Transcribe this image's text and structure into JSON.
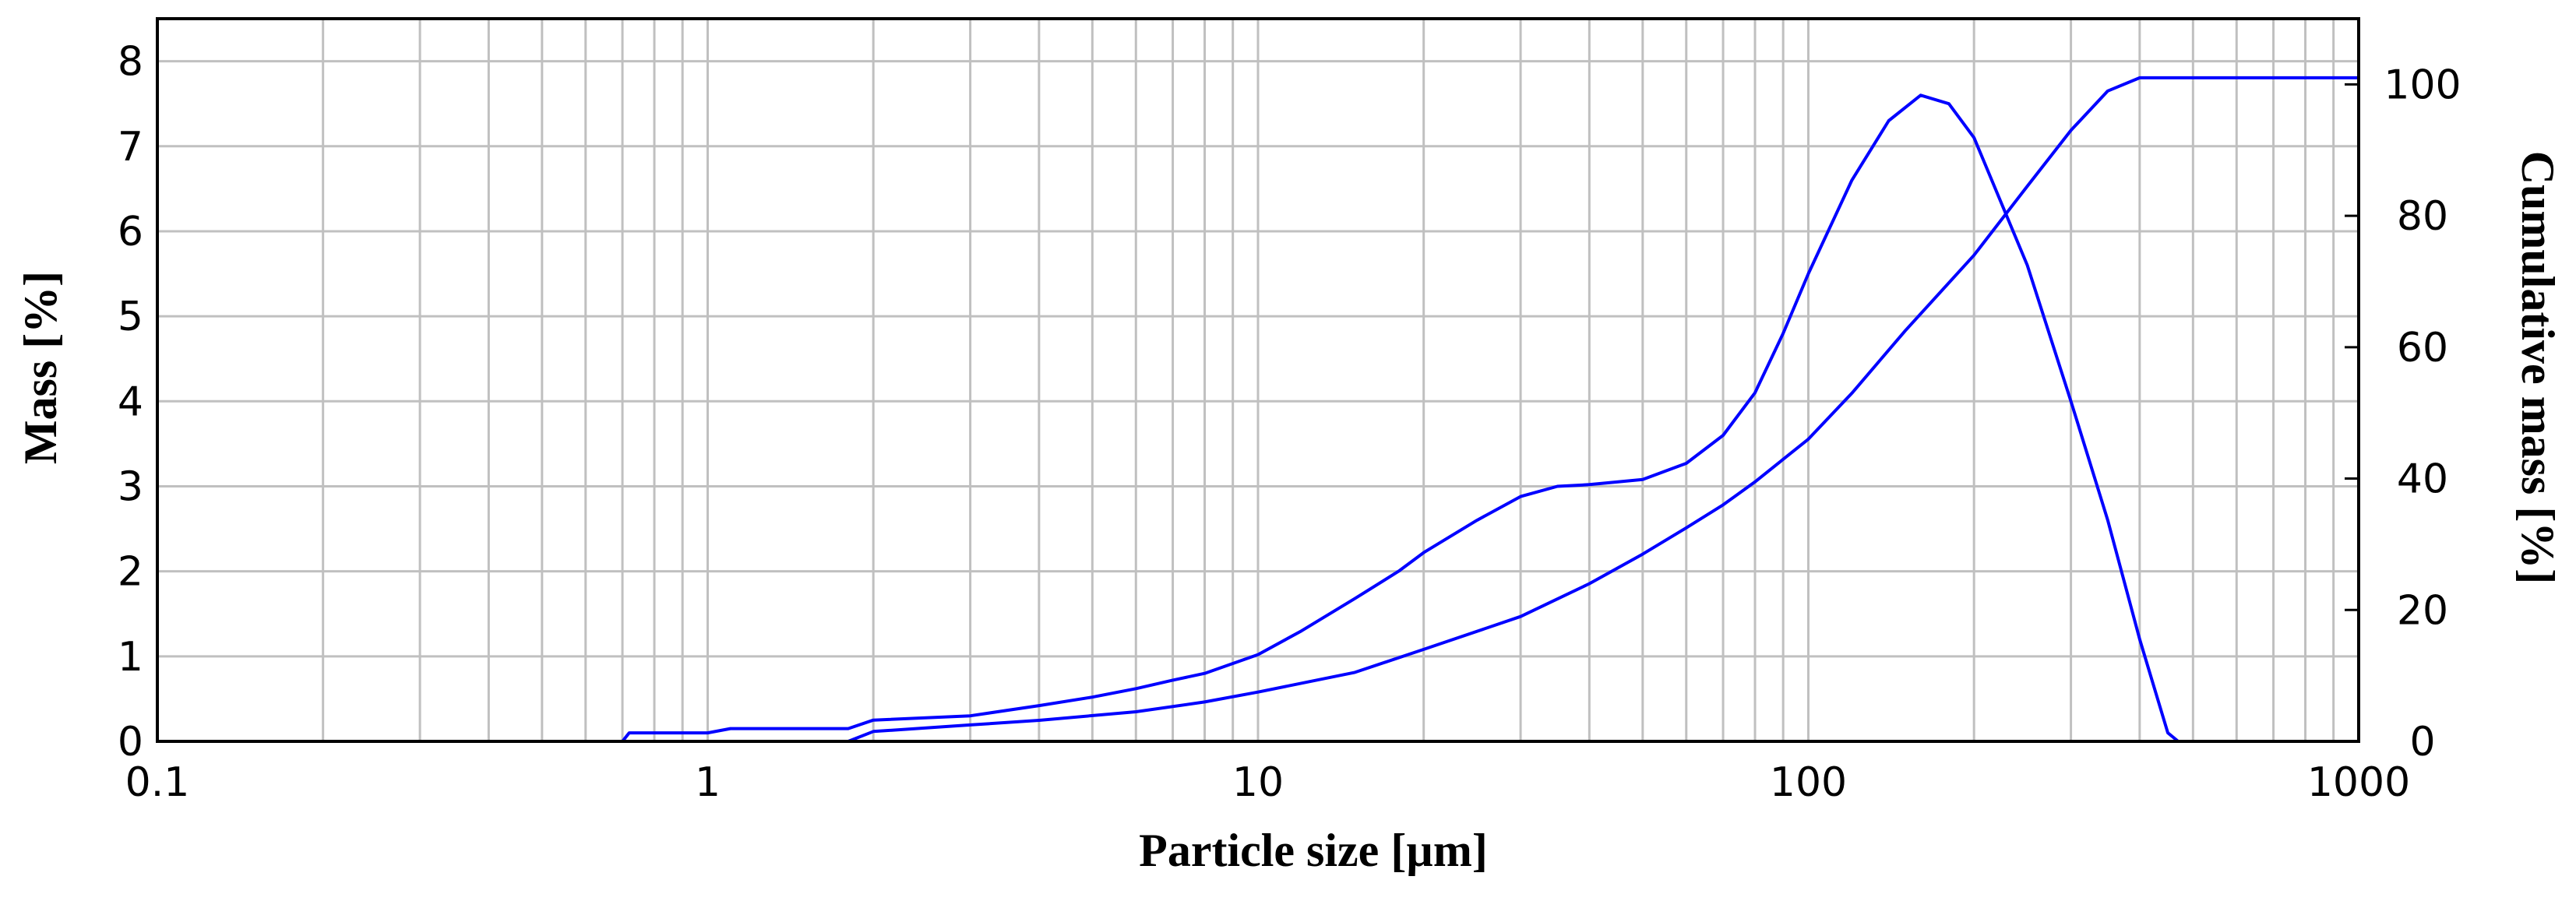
{
  "chart_data": {
    "type": "line",
    "xlabel": "Particle size [µm]",
    "ylabel": "Mass [%]",
    "y2label": "Cumulative mass [%]",
    "xscale": "log",
    "xlim": [
      0.1,
      1000
    ],
    "ylim": [
      0,
      8.5
    ],
    "y2lim": [
      0,
      110
    ],
    "grid": true,
    "line_color": "#0000ff",
    "grid_color": "#c0c0c0",
    "x_ticks": [
      0.1,
      1,
      10,
      100,
      1000
    ],
    "x_tick_labels": [
      "0.1",
      "1",
      "10",
      "100",
      "1000"
    ],
    "y_ticks": [
      0,
      1,
      2,
      3,
      4,
      5,
      6,
      7,
      8
    ],
    "y_tick_labels": [
      "0",
      "1",
      "2",
      "3",
      "4",
      "5",
      "6",
      "7",
      "8"
    ],
    "y2_ticks": [
      0,
      20,
      40,
      60,
      80,
      100
    ],
    "y2_tick_labels": [
      "0",
      "20",
      "40",
      "60",
      "80",
      "100"
    ],
    "series": [
      {
        "axis": "left",
        "points": [
          [
            0.1,
            0
          ],
          [
            0.5,
            0
          ],
          [
            0.7,
            0
          ],
          [
            0.72,
            0.1
          ],
          [
            1.0,
            0.1
          ],
          [
            1.1,
            0.15
          ],
          [
            1.8,
            0.15
          ],
          [
            2.0,
            0.25
          ],
          [
            3.0,
            0.3
          ],
          [
            4.0,
            0.42
          ],
          [
            5.0,
            0.52
          ],
          [
            6.0,
            0.62
          ],
          [
            7.0,
            0.72
          ],
          [
            8.0,
            0.8
          ],
          [
            10,
            1.02
          ],
          [
            12,
            1.3
          ],
          [
            15,
            1.68
          ],
          [
            18,
            2.0
          ],
          [
            20,
            2.22
          ],
          [
            25,
            2.6
          ],
          [
            30,
            2.88
          ],
          [
            35,
            3.0
          ],
          [
            40,
            3.02
          ],
          [
            50,
            3.08
          ],
          [
            60,
            3.27
          ],
          [
            70,
            3.6
          ],
          [
            80,
            4.1
          ],
          [
            90,
            4.8
          ],
          [
            100,
            5.5
          ],
          [
            120,
            6.6
          ],
          [
            140,
            7.3
          ],
          [
            160,
            7.6
          ],
          [
            180,
            7.5
          ],
          [
            200,
            7.1
          ],
          [
            250,
            5.6
          ],
          [
            300,
            4.0
          ],
          [
            350,
            2.6
          ],
          [
            400,
            1.2
          ],
          [
            450,
            0.1
          ],
          [
            470,
            0
          ]
        ]
      },
      {
        "axis": "right",
        "points": [
          [
            0.1,
            0
          ],
          [
            1.5,
            0
          ],
          [
            1.8,
            0
          ],
          [
            2.0,
            1.5
          ],
          [
            3.0,
            2.5
          ],
          [
            4.0,
            3.2
          ],
          [
            6.0,
            4.5
          ],
          [
            8.0,
            6.0
          ],
          [
            10,
            7.5
          ],
          [
            15,
            10.5
          ],
          [
            20,
            14.0
          ],
          [
            30,
            19.0
          ],
          [
            40,
            24.0
          ],
          [
            50,
            28.5
          ],
          [
            60,
            32.5
          ],
          [
            70,
            36.0
          ],
          [
            80,
            39.5
          ],
          [
            100,
            46.0
          ],
          [
            120,
            53.0
          ],
          [
            150,
            62.5
          ],
          [
            200,
            74.0
          ],
          [
            250,
            84.5
          ],
          [
            300,
            93.0
          ],
          [
            350,
            99.0
          ],
          [
            400,
            101.0
          ],
          [
            500,
            101.0
          ],
          [
            1000,
            101.0
          ]
        ]
      }
    ]
  }
}
